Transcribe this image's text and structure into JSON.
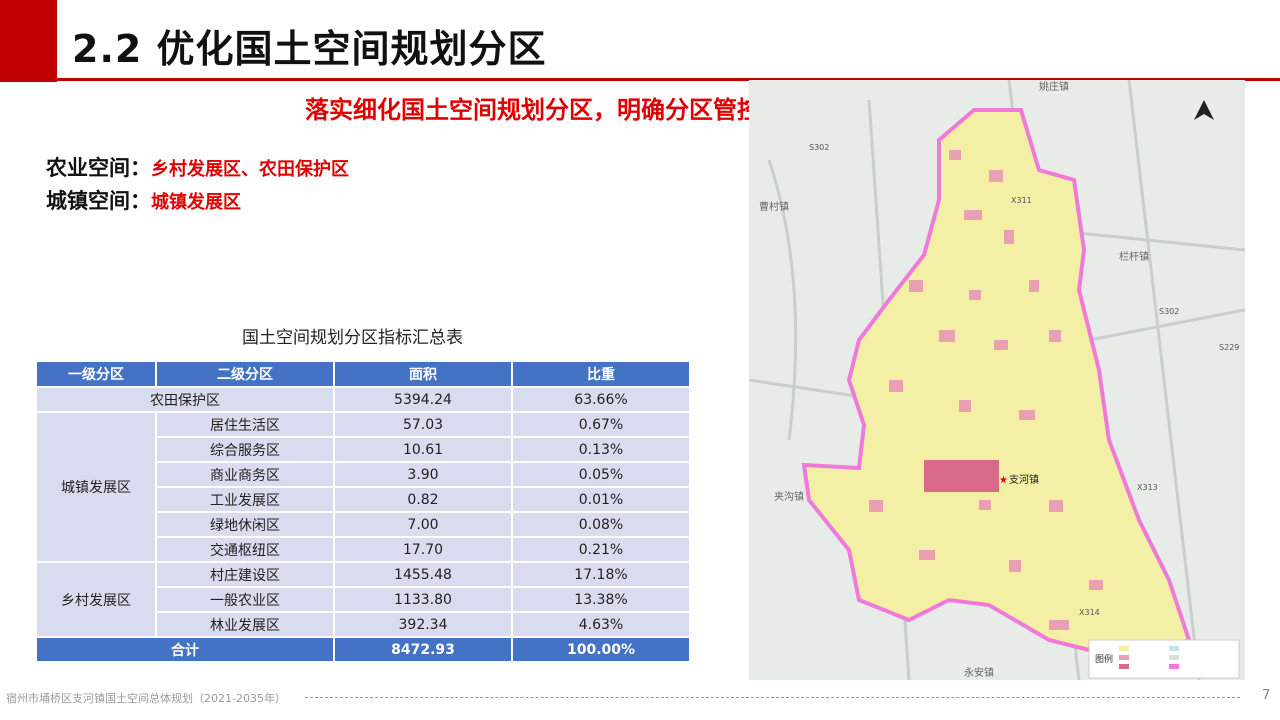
{
  "header": {
    "title": "2.2 优化国土空间规划分区"
  },
  "subtitle": "落实细化国土空间规划分区，明确分区管控规则",
  "spaces": [
    {
      "label": "农业空间：",
      "value": "乡村发展区、农田保护区"
    },
    {
      "label": "城镇空间：",
      "value": "城镇发展区"
    }
  ],
  "table": {
    "title": "国土空间规划分区指标汇总表",
    "headers": [
      "一级分区",
      "二级分区",
      "面积",
      "比重"
    ],
    "farm_row": {
      "name": "农田保护区",
      "area": "5394.24",
      "ratio": "63.66%"
    },
    "urban_group": "城镇发展区",
    "urban_rows": [
      {
        "name": "居住生活区",
        "area": "57.03",
        "ratio": "0.67%"
      },
      {
        "name": "综合服务区",
        "area": "10.61",
        "ratio": "0.13%"
      },
      {
        "name": "商业商务区",
        "area": "3.90",
        "ratio": "0.05%"
      },
      {
        "name": "工业发展区",
        "area": "0.82",
        "ratio": "0.01%"
      },
      {
        "name": "绿地休闲区",
        "area": "7.00",
        "ratio": "0.08%"
      },
      {
        "name": "交通枢纽区",
        "area": "17.70",
        "ratio": "0.21%"
      }
    ],
    "rural_group": "乡村发展区",
    "rural_rows": [
      {
        "name": "村庄建设区",
        "area": "1455.48",
        "ratio": "17.18%"
      },
      {
        "name": "一般农业区",
        "area": "1133.80",
        "ratio": "13.38%"
      },
      {
        "name": "林业发展区",
        "area": "392.34",
        "ratio": "4.63%"
      }
    ],
    "total": {
      "name": "合计",
      "area": "8472.93",
      "ratio": "100.00%"
    }
  },
  "map": {
    "labels": {
      "yaozhuang": "姚庄镇",
      "caocun": "曹村镇",
      "lanqian": "栏杆镇",
      "jiagou": "夹沟镇",
      "yongan": "永安镇",
      "zhihe": "支河镇",
      "s302_a": "S302",
      "s302_b": "S302",
      "x311": "X311",
      "x314": "X314",
      "s229": "S229",
      "s313": "X313",
      "legend_title": "图例"
    },
    "colors": {
      "town": "#f3f0a6",
      "village": "#e9a0b4",
      "boundary": "#f07ad9",
      "bg": "#e7ece8"
    }
  },
  "footer": {
    "text": "宿州市埇桥区支河镇国土空间总体规划（2021-2035年）",
    "page": "7"
  }
}
